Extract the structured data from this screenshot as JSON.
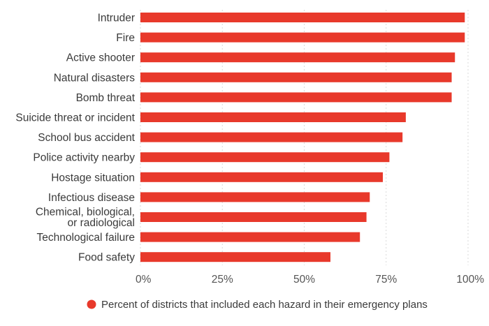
{
  "chart_data": {
    "type": "bar",
    "orientation": "horizontal",
    "categories": [
      "Intruder",
      "Fire",
      "Active shooter",
      "Natural disasters",
      "Bomb threat",
      "Suicide threat or incident",
      "School bus accident",
      "Police activity nearby",
      "Hostage situation",
      "Infectious disease",
      "Chemical, biological, or radiological",
      "Technological failure",
      "Food safety"
    ],
    "series": [
      {
        "name": "Percent of districts that included each hazard in their emergency plans",
        "color": "#e8392b",
        "values": [
          99,
          99,
          96,
          95,
          95,
          81,
          80,
          76,
          74,
          70,
          69,
          67,
          58
        ]
      }
    ],
    "xlim": [
      0,
      100
    ],
    "x_ticks": [
      "0%",
      "25%",
      "50%",
      "75%",
      "100%"
    ],
    "x_tick_values": [
      0,
      25,
      50,
      75,
      100
    ],
    "grid": true,
    "legend": "bottom"
  }
}
